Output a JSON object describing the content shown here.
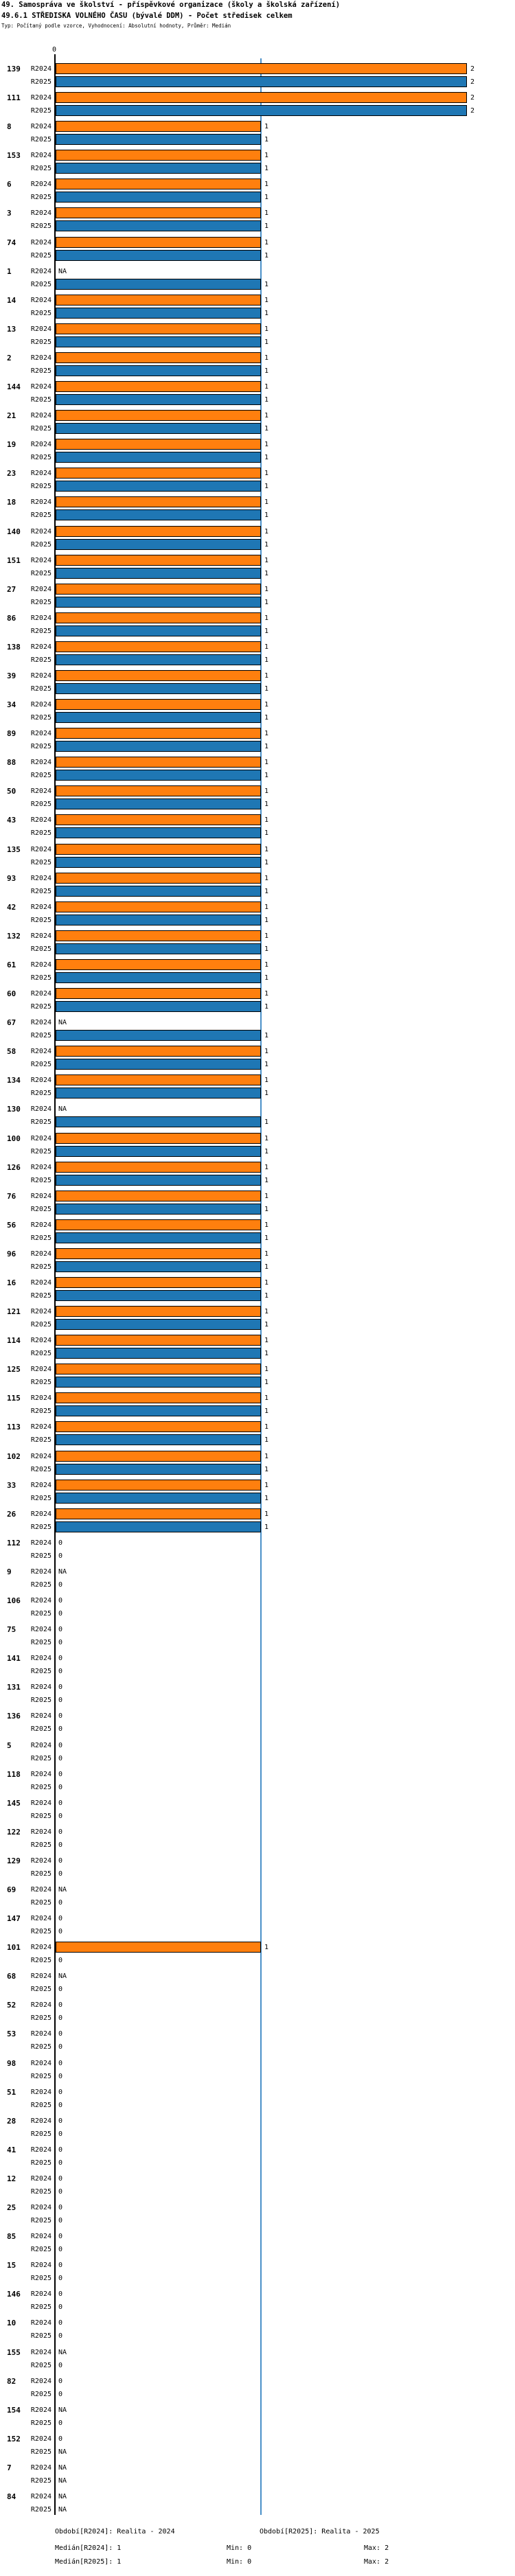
{
  "chart_data": {
    "type": "bar",
    "orientation": "horizontal",
    "title": "49. Samospráva ve školství - příspěvkové organizace (školy a školská zařízení)",
    "subtitle": "49.6.1 STŘEDISKA VOLNÉHO ČASU (bývalé DDM) - Počet středisek celkem",
    "meta": "Typ: Počítaný podle vzorce, Vyhodnocení: Absolutní hodnoty, Průměr: Medián",
    "xlim": [
      0,
      2
    ],
    "x_tick_labels": [
      "0"
    ],
    "median_line_value": 1,
    "na_text": "NA",
    "series_labels": [
      "R2024",
      "R2025"
    ],
    "colors": {
      "r2024_bar": "#ff7f0e",
      "r2025_bar": "#1f77b4",
      "median_line": "#4a90c8",
      "axis": "#000000"
    },
    "groups": [
      {
        "label": "139",
        "R2024": 2,
        "R2025": 2
      },
      {
        "label": "111",
        "R2024": 2,
        "R2025": 2
      },
      {
        "label": "8",
        "R2024": 1,
        "R2025": 1
      },
      {
        "label": "153",
        "R2024": 1,
        "R2025": 1
      },
      {
        "label": "6",
        "R2024": 1,
        "R2025": 1
      },
      {
        "label": "3",
        "R2024": 1,
        "R2025": 1
      },
      {
        "label": "74",
        "R2024": 1,
        "R2025": 1
      },
      {
        "label": "1",
        "R2024": "NA",
        "R2025": 1
      },
      {
        "label": "14",
        "R2024": 1,
        "R2025": 1
      },
      {
        "label": "13",
        "R2024": 1,
        "R2025": 1
      },
      {
        "label": "2",
        "R2024": 1,
        "R2025": 1
      },
      {
        "label": "144",
        "R2024": 1,
        "R2025": 1
      },
      {
        "label": "21",
        "R2024": 1,
        "R2025": 1
      },
      {
        "label": "19",
        "R2024": 1,
        "R2025": 1
      },
      {
        "label": "23",
        "R2024": 1,
        "R2025": 1
      },
      {
        "label": "18",
        "R2024": 1,
        "R2025": 1
      },
      {
        "label": "140",
        "R2024": 1,
        "R2025": 1
      },
      {
        "label": "151",
        "R2024": 1,
        "R2025": 1
      },
      {
        "label": "27",
        "R2024": 1,
        "R2025": 1
      },
      {
        "label": "86",
        "R2024": 1,
        "R2025": 1
      },
      {
        "label": "138",
        "R2024": 1,
        "R2025": 1
      },
      {
        "label": "39",
        "R2024": 1,
        "R2025": 1
      },
      {
        "label": "34",
        "R2024": 1,
        "R2025": 1
      },
      {
        "label": "89",
        "R2024": 1,
        "R2025": 1
      },
      {
        "label": "88",
        "R2024": 1,
        "R2025": 1
      },
      {
        "label": "50",
        "R2024": 1,
        "R2025": 1
      },
      {
        "label": "43",
        "R2024": 1,
        "R2025": 1
      },
      {
        "label": "135",
        "R2024": 1,
        "R2025": 1
      },
      {
        "label": "93",
        "R2024": 1,
        "R2025": 1
      },
      {
        "label": "42",
        "R2024": 1,
        "R2025": 1
      },
      {
        "label": "132",
        "R2024": 1,
        "R2025": 1
      },
      {
        "label": "61",
        "R2024": 1,
        "R2025": 1
      },
      {
        "label": "60",
        "R2024": 1,
        "R2025": 1
      },
      {
        "label": "67",
        "R2024": "NA",
        "R2025": 1
      },
      {
        "label": "58",
        "R2024": 1,
        "R2025": 1
      },
      {
        "label": "134",
        "R2024": 1,
        "R2025": 1
      },
      {
        "label": "130",
        "R2024": "NA",
        "R2025": 1
      },
      {
        "label": "100",
        "R2024": 1,
        "R2025": 1
      },
      {
        "label": "126",
        "R2024": 1,
        "R2025": 1
      },
      {
        "label": "76",
        "R2024": 1,
        "R2025": 1
      },
      {
        "label": "56",
        "R2024": 1,
        "R2025": 1
      },
      {
        "label": "96",
        "R2024": 1,
        "R2025": 1
      },
      {
        "label": "16",
        "R2024": 1,
        "R2025": 1
      },
      {
        "label": "121",
        "R2024": 1,
        "R2025": 1
      },
      {
        "label": "114",
        "R2024": 1,
        "R2025": 1
      },
      {
        "label": "125",
        "R2024": 1,
        "R2025": 1
      },
      {
        "label": "115",
        "R2024": 1,
        "R2025": 1
      },
      {
        "label": "113",
        "R2024": 1,
        "R2025": 1
      },
      {
        "label": "102",
        "R2024": 1,
        "R2025": 1
      },
      {
        "label": "33",
        "R2024": 1,
        "R2025": 1
      },
      {
        "label": "26",
        "R2024": 1,
        "R2025": 1
      },
      {
        "label": "112",
        "R2024": 0,
        "R2025": 0
      },
      {
        "label": "9",
        "R2024": "NA",
        "R2025": 0
      },
      {
        "label": "106",
        "R2024": 0,
        "R2025": 0
      },
      {
        "label": "75",
        "R2024": 0,
        "R2025": 0
      },
      {
        "label": "141",
        "R2024": 0,
        "R2025": 0
      },
      {
        "label": "131",
        "R2024": 0,
        "R2025": 0
      },
      {
        "label": "136",
        "R2024": 0,
        "R2025": 0
      },
      {
        "label": "5",
        "R2024": 0,
        "R2025": 0
      },
      {
        "label": "118",
        "R2024": 0,
        "R2025": 0
      },
      {
        "label": "145",
        "R2024": 0,
        "R2025": 0
      },
      {
        "label": "122",
        "R2024": 0,
        "R2025": 0
      },
      {
        "label": "129",
        "R2024": 0,
        "R2025": 0
      },
      {
        "label": "69",
        "R2024": "NA",
        "R2025": 0
      },
      {
        "label": "147",
        "R2024": 0,
        "R2025": 0
      },
      {
        "label": "101",
        "R2024": 1,
        "R2025": 0
      },
      {
        "label": "68",
        "R2024": "NA",
        "R2025": 0
      },
      {
        "label": "52",
        "R2024": 0,
        "R2025": 0
      },
      {
        "label": "53",
        "R2024": 0,
        "R2025": 0
      },
      {
        "label": "98",
        "R2024": 0,
        "R2025": 0
      },
      {
        "label": "51",
        "R2024": 0,
        "R2025": 0
      },
      {
        "label": "28",
        "R2024": 0,
        "R2025": 0
      },
      {
        "label": "41",
        "R2024": 0,
        "R2025": 0
      },
      {
        "label": "12",
        "R2024": 0,
        "R2025": 0
      },
      {
        "label": "25",
        "R2024": 0,
        "R2025": 0
      },
      {
        "label": "85",
        "R2024": 0,
        "R2025": 0
      },
      {
        "label": "15",
        "R2024": 0,
        "R2025": 0
      },
      {
        "label": "146",
        "R2024": 0,
        "R2025": 0
      },
      {
        "label": "10",
        "R2024": 0,
        "R2025": 0
      },
      {
        "label": "155",
        "R2024": "NA",
        "R2025": 0
      },
      {
        "label": "82",
        "R2024": 0,
        "R2025": 0
      },
      {
        "label": "154",
        "R2024": "NA",
        "R2025": 0
      },
      {
        "label": "152",
        "R2024": 0,
        "R2025": "NA"
      },
      {
        "label": "7",
        "R2024": "NA",
        "R2025": "NA"
      },
      {
        "label": "84",
        "R2024": "NA",
        "R2025": "NA"
      }
    ]
  },
  "footer": {
    "period_r2024": "Období[R2024]: Realita - 2024",
    "period_r2025": "Období[R2025]: Realita - 2025",
    "median_r2024": "Medián[R2024]: 1",
    "min_r2024": "Min: 0",
    "max_r2024": "Max: 2",
    "median_r2025": "Medián[R2025]: 1",
    "min_r2025": "Min: 0",
    "max_r2025": "Max: 2"
  }
}
